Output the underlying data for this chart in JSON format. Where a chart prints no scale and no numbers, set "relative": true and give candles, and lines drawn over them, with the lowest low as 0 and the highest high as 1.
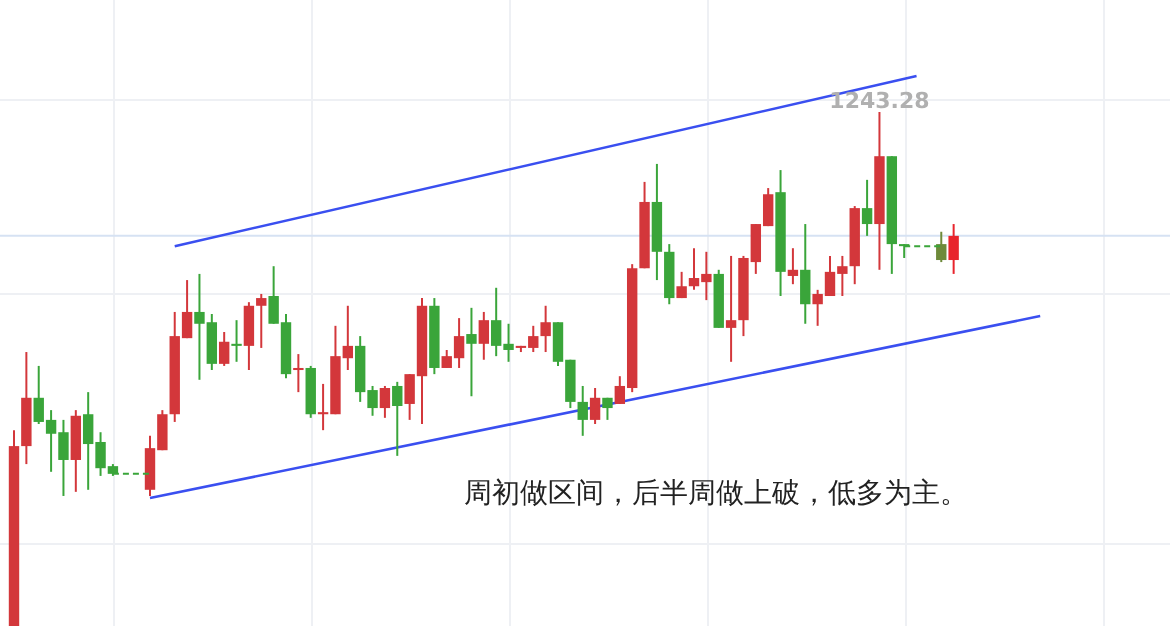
{
  "chart_data": {
    "type": "candlestick",
    "relative": true,
    "grid": true,
    "categories": [
      null,
      null,
      null,
      null,
      null,
      null,
      null,
      null,
      null,
      null,
      null,
      null,
      null,
      null,
      null,
      null,
      null,
      null,
      null,
      null,
      null,
      null,
      null,
      null,
      null,
      null,
      null,
      null,
      null,
      null,
      null,
      null,
      null,
      null,
      null,
      null,
      null,
      null,
      null,
      null,
      null,
      null,
      null,
      null,
      null,
      null,
      null,
      null,
      null,
      null,
      null,
      null,
      null,
      null,
      null,
      null,
      null,
      null,
      null,
      null,
      null,
      null,
      null,
      null,
      null,
      null,
      null,
      null,
      null,
      null,
      null,
      null,
      null,
      null,
      null,
      null,
      null,
      null,
      null,
      null,
      null,
      null,
      null,
      null,
      null,
      null,
      null,
      null,
      null,
      null,
      null,
      null,
      null,
      null
    ],
    "ohlc": [
      [
        0,
        0.381,
        0,
        0.35
      ],
      [
        0.35,
        0.533,
        0.315,
        0.444
      ],
      [
        0.444,
        0.506,
        0.393,
        0.397
      ],
      [
        0.401,
        0.42,
        0.3,
        0.374
      ],
      [
        0.377,
        0.401,
        0.253,
        0.323
      ],
      [
        0.323,
        0.42,
        0.261,
        0.409
      ],
      [
        0.412,
        0.455,
        0.265,
        0.354
      ],
      [
        0.358,
        0.377,
        0.292,
        0.307
      ],
      [
        0.311,
        0.315,
        0.292,
        0.296
      ],
      null,
      null,
      [
        0.265,
        0.37,
        0.253,
        0.346
      ],
      [
        0.342,
        0.42,
        0.342,
        0.412
      ],
      [
        0.412,
        0.611,
        0.397,
        0.564
      ],
      [
        0.56,
        0.673,
        0.56,
        0.611
      ],
      [
        0.611,
        0.685,
        0.479,
        0.588
      ],
      [
        0.591,
        0.607,
        0.498,
        0.51
      ],
      [
        0.51,
        0.572,
        0.506,
        0.553
      ],
      [
        0.549,
        0.595,
        0.514,
        0.545
      ],
      [
        0.545,
        0.63,
        0.498,
        0.623
      ],
      [
        0.623,
        0.646,
        0.541,
        0.638
      ],
      [
        0.642,
        0.7,
        0.588,
        0.588
      ],
      [
        0.591,
        0.607,
        0.482,
        0.49
      ],
      [
        0.498,
        0.529,
        0.455,
        0.502
      ],
      [
        0.502,
        0.506,
        0.405,
        0.412
      ],
      [
        0.412,
        0.471,
        0.381,
        0.416
      ],
      [
        0.412,
        0.584,
        0.412,
        0.525
      ],
      [
        0.521,
        0.623,
        0.498,
        0.545
      ],
      [
        0.545,
        0.564,
        0.436,
        0.455
      ],
      [
        0.459,
        0.467,
        0.409,
        0.424
      ],
      [
        0.424,
        0.467,
        0.405,
        0.463
      ],
      [
        0.467,
        0.475,
        0.331,
        0.428
      ],
      [
        0.432,
        0.49,
        0.401,
        0.49
      ],
      [
        0.486,
        0.638,
        0.393,
        0.623
      ],
      [
        0.623,
        0.638,
        0.49,
        0.502
      ],
      [
        0.502,
        0.537,
        0.502,
        0.525
      ],
      [
        0.521,
        0.599,
        0.502,
        0.564
      ],
      [
        0.568,
        0.619,
        0.447,
        0.549
      ],
      [
        0.549,
        0.611,
        0.518,
        0.595
      ],
      [
        0.595,
        0.658,
        0.525,
        0.545
      ],
      [
        0.549,
        0.588,
        0.514,
        0.537
      ],
      [
        0.541,
        0.545,
        0.533,
        0.545
      ],
      [
        0.541,
        0.584,
        0.533,
        0.564
      ],
      [
        0.564,
        0.623,
        0.533,
        0.591
      ],
      [
        0.591,
        0.591,
        0.506,
        0.514
      ],
      [
        0.518,
        0.518,
        0.424,
        0.436
      ],
      [
        0.436,
        0.467,
        0.37,
        0.401
      ],
      [
        0.401,
        0.463,
        0.393,
        0.444
      ],
      [
        0.444,
        0.444,
        0.401,
        0.424
      ],
      [
        0.432,
        0.486,
        0.432,
        0.467
      ],
      [
        0.463,
        0.704,
        0.455,
        0.696
      ],
      [
        0.696,
        0.864,
        0.696,
        0.825
      ],
      [
        0.825,
        0.899,
        0.673,
        0.728
      ],
      [
        0.728,
        0.743,
        0.626,
        0.638
      ],
      [
        0.638,
        0.689,
        0.638,
        0.661
      ],
      [
        0.661,
        0.735,
        0.654,
        0.677
      ],
      [
        0.669,
        0.728,
        0.634,
        0.685
      ],
      [
        0.685,
        0.693,
        0.58,
        0.58
      ],
      [
        0.58,
        0.72,
        0.514,
        0.595
      ],
      [
        0.595,
        0.72,
        0.564,
        0.716
      ],
      [
        0.708,
        0.782,
        0.685,
        0.782
      ],
      [
        0.778,
        0.852,
        0.778,
        0.84
      ],
      [
        0.844,
        0.887,
        0.642,
        0.689
      ],
      [
        0.681,
        0.735,
        0.665,
        0.693
      ],
      [
        0.693,
        0.782,
        0.588,
        0.626
      ],
      [
        0.626,
        0.654,
        0.584,
        0.646
      ],
      [
        0.642,
        0.72,
        0.642,
        0.689
      ],
      [
        0.685,
        0.72,
        0.642,
        0.7
      ],
      [
        0.7,
        0.817,
        0.665,
        0.813
      ],
      [
        0.813,
        0.868,
        0.759,
        0.782
      ],
      [
        0.782,
        1,
        0.693,
        0.914
      ],
      [
        0.914,
        0.914,
        0.685,
        0.743
      ],
      [
        0.743,
        0.743,
        0.716,
        0.739
      ],
      null,
      null,
      [
        0.743,
        0.767,
        0.708,
        0.712
      ],
      [
        0.712,
        0.782,
        0.685,
        0.759
      ],
      null,
      null,
      null,
      null,
      null,
      null,
      null,
      null,
      null,
      null,
      null,
      null,
      null,
      null,
      null,
      null,
      null
    ],
    "colors": [
      "#d3373b",
      "#d3373b",
      "#3aa53a",
      "#3aa53a",
      "#3aa53a",
      "#d3373b",
      "#3aa53a",
      "#3aa53a",
      "#3aa53a",
      null,
      null,
      "#d3373b",
      "#d3373b",
      "#d3373b",
      "#d3373b",
      "#3aa53a",
      "#3aa53a",
      "#d3373b",
      "#3aa53a",
      "#d3373b",
      "#d3373b",
      "#3aa53a",
      "#3aa53a",
      "#d3373b",
      "#3aa53a",
      "#d3373b",
      "#d3373b",
      "#d3373b",
      "#3aa53a",
      "#3aa53a",
      "#d3373b",
      "#3aa53a",
      "#d3373b",
      "#d3373b",
      "#3aa53a",
      "#d3373b",
      "#d3373b",
      "#3aa53a",
      "#d3373b",
      "#3aa53a",
      "#3aa53a",
      "#d3373b",
      "#d3373b",
      "#d3373b",
      "#3aa53a",
      "#3aa53a",
      "#3aa53a",
      "#d3373b",
      "#3aa53a",
      "#d3373b",
      "#d3373b",
      "#d3373b",
      "#3aa53a",
      "#3aa53a",
      "#d3373b",
      "#d3373b",
      "#d3373b",
      "#3aa53a",
      "#d3373b",
      "#d3373b",
      "#d3373b",
      "#d3373b",
      "#3aa53a",
      "#d3373b",
      "#3aa53a",
      "#d3373b",
      "#d3373b",
      "#d3373b",
      "#d3373b",
      "#3aa53a",
      "#d3373b",
      "#3aa53a",
      "#3aa53a",
      null,
      null,
      "#6e8a3a",
      "#e8242c",
      null,
      null,
      null,
      null,
      null,
      null,
      null,
      null,
      null,
      null,
      null,
      null,
      null,
      null,
      null,
      null,
      null
    ],
    "series": [
      {
        "type": "line",
        "color": "#3a4ff0",
        "values": [
          null,
          null,
          null,
          null,
          null,
          null,
          null,
          null,
          null,
          null,
          null,
          null,
          null,
          0.739,
          null,
          null,
          null,
          null,
          null,
          null,
          null,
          null,
          null,
          null,
          null,
          null,
          null,
          null,
          null,
          null,
          null,
          null,
          null,
          null,
          null,
          null,
          null,
          null,
          null,
          null,
          null,
          null,
          null,
          null,
          null,
          null,
          null,
          null,
          null,
          null,
          null,
          null,
          null,
          null,
          null,
          null,
          null,
          null,
          null,
          null,
          null,
          null,
          null,
          null,
          null,
          null,
          null,
          null,
          null,
          null,
          null,
          null,
          null,
          1.07,
          null,
          null,
          null,
          null,
          null,
          null,
          null,
          null,
          null,
          null,
          null,
          null,
          null,
          null,
          null,
          null,
          null,
          null,
          null,
          null
        ]
      },
      {
        "type": "line",
        "color": "#3a4ff0",
        "values": [
          null,
          null,
          null,
          null,
          null,
          null,
          null,
          null,
          null,
          null,
          null,
          0.249,
          null,
          null,
          null,
          null,
          null,
          null,
          null,
          null,
          null,
          null,
          null,
          null,
          null,
          null,
          null,
          null,
          null,
          null,
          null,
          null,
          null,
          null,
          null,
          null,
          null,
          null,
          null,
          null,
          null,
          null,
          null,
          null,
          null,
          null,
          null,
          null,
          null,
          null,
          null,
          null,
          null,
          null,
          null,
          null,
          null,
          null,
          null,
          null,
          null,
          null,
          null,
          null,
          null,
          null,
          null,
          null,
          null,
          null,
          null,
          null,
          null,
          null,
          null,
          null,
          null,
          null,
          null,
          null,
          null,
          null,
          null,
          0.603,
          null,
          null,
          null,
          null,
          null,
          null,
          null,
          null,
          null,
          null
        ]
      }
    ],
    "ref_lines": [
      {
        "axis": "y",
        "value": 0.759,
        "color": "#d6e2f3"
      }
    ],
    "annotations": [
      "1243.28",
      "周初做区间，后半周做上破，低多为主。"
    ]
  }
}
